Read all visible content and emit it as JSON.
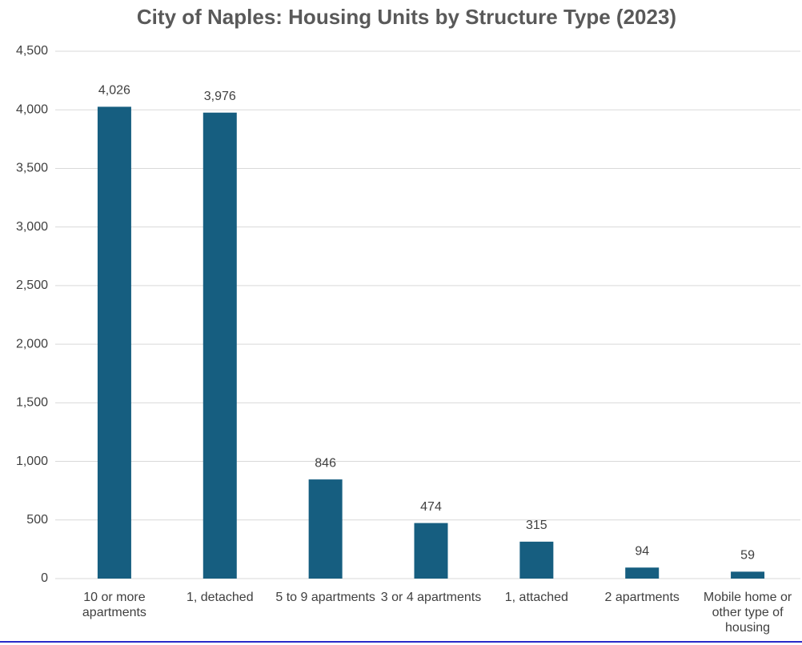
{
  "chart_data": {
    "type": "bar",
    "title": "City of Naples: Housing Units by Structure Type (2023)",
    "categories": [
      "10 or more apartments",
      "1, detached",
      "5 to 9 apartments",
      "3 or 4 apartments",
      "1, attached",
      "2 apartments",
      "Mobile home or other type of housing"
    ],
    "values": [
      4026,
      3976,
      846,
      474,
      315,
      94,
      59
    ],
    "value_labels": [
      "4,026",
      "3,976",
      "846",
      "474",
      "315",
      "94",
      "59"
    ],
    "color": "#165e80",
    "ylim": [
      0,
      4500
    ],
    "yticks": [
      0,
      500,
      {
        "value": 1000,
        "label": "1,000"
      },
      {
        "value": 1500,
        "label": "1,500"
      },
      {
        "value": 2000,
        "label": "2,000"
      },
      {
        "value": 2500,
        "label": "2,500"
      },
      {
        "value": 3000,
        "label": "3,000"
      },
      {
        "value": 3500,
        "label": "3,500"
      },
      {
        "value": 4000,
        "label": "4,000"
      },
      {
        "value": 4500,
        "label": "4,500"
      }
    ],
    "grid": true
  }
}
